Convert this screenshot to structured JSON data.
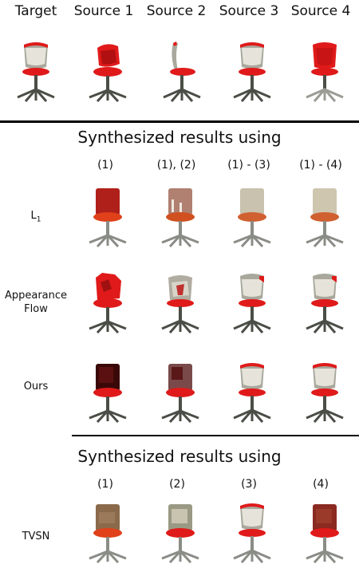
{
  "top_headers": [
    "Target",
    "Source 1",
    "Source 2",
    "Source 3",
    "Source 4"
  ],
  "section1": {
    "title": "Synthesized results using",
    "columns": [
      "(1)",
      "(1), (2)",
      "(1) - (3)",
      "(1) - (4)"
    ],
    "rows": [
      {
        "label_main": "L",
        "label_sub": "1",
        "label": ""
      },
      {
        "label": "Appearance Flow"
      },
      {
        "label": "Ours"
      }
    ]
  },
  "section2": {
    "title": "Synthesized results using",
    "columns": [
      "(1)",
      "(2)",
      "(3)",
      "(4)"
    ],
    "rows": [
      {
        "label": "TVSN"
      }
    ]
  },
  "colors": {
    "red_seat": "#e01a1a",
    "dark_red": "#8b1010",
    "grey_back": "#a8a89a",
    "frame": "#4a4e46",
    "white_back": "#e8e6dc"
  }
}
